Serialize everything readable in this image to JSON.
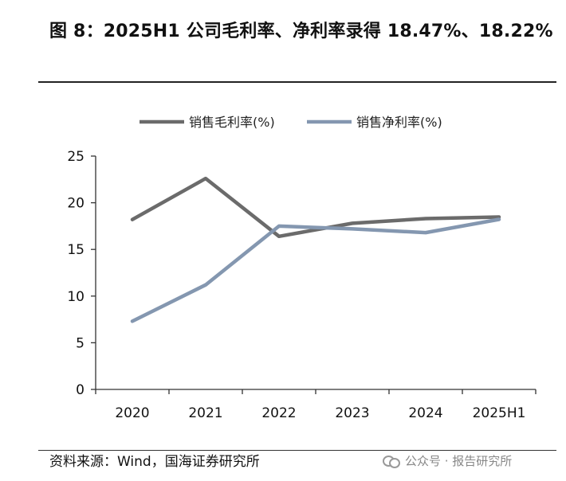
{
  "figure": {
    "title": "图 8：2025H1 公司毛利率、净利率录得 18.47%、18.22%",
    "source": "资料来源：Wind，国海证券研究所",
    "watermark": "公众号 · 报告研究所"
  },
  "chart_data": {
    "type": "line",
    "categories": [
      "2020",
      "2021",
      "2022",
      "2023",
      "2024",
      "2025H1"
    ],
    "series": [
      {
        "name": "销售毛利率(%)",
        "color": "#6b6b6b",
        "values": [
          18.2,
          22.6,
          16.4,
          17.8,
          18.3,
          18.47
        ]
      },
      {
        "name": "销售净利率(%)",
        "color": "#8497b0",
        "values": [
          7.3,
          11.2,
          17.5,
          17.2,
          16.8,
          18.22
        ]
      }
    ],
    "yticks": [
      "0",
      "5",
      "10",
      "15",
      "20",
      "25"
    ],
    "ylim": [
      0,
      25
    ],
    "legend_position": "top",
    "grid": false
  }
}
